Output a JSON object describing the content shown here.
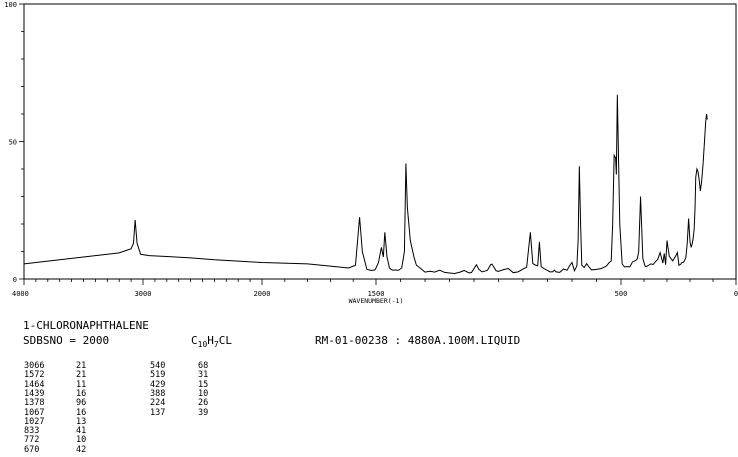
{
  "chart_data": {
    "type": "line",
    "xlabel": "WAVENUMBER(-1)",
    "ylabel": "",
    "xlim": [
      4000,
      0
    ],
    "ylim": [
      0,
      100
    ],
    "x_ticks": [
      "4000",
      "3000",
      "2000",
      "1500",
      "500",
      "0"
    ],
    "y_ticks": [
      "100",
      "50",
      "0"
    ],
    "grid": false,
    "series": [
      {
        "x": [
          4000,
          3800,
          3600,
          3400,
          3200,
          3100,
          3080,
          3066,
          3050,
          3020,
          2950,
          2800,
          2600,
          2400,
          2200,
          2000,
          1800,
          1700,
          1620,
          1590,
          1572,
          1560,
          1540,
          1520,
          1505,
          1500,
          1490,
          1478,
          1470,
          1464,
          1455,
          1445,
          1439,
          1432,
          1420,
          1410,
          1395,
          1384,
          1378,
          1372,
          1360,
          1345,
          1335,
          1320,
          1300,
          1280,
          1260,
          1240,
          1220,
          1200,
          1180,
          1160,
          1140,
          1120,
          1110,
          1100,
          1090,
          1080,
          1067,
          1058,
          1045,
          1032,
          1027,
          1020,
          1010,
          1000,
          980,
          960,
          940,
          920,
          900,
          885,
          870,
          860,
          850,
          840,
          833,
          826,
          815,
          800,
          790,
          780,
          772,
          765,
          750,
          735,
          720,
          710,
          700,
          690,
          680,
          675,
          670,
          665,
          660,
          650,
          640,
          630,
          620,
          600,
          580,
          560,
          548,
          540,
          534,
          528,
          522,
          519,
          515,
          505,
          495,
          485,
          472,
          462,
          455,
          450,
          440,
          435,
          429,
          423,
          415,
          405,
          395,
          388,
          380,
          370,
          360,
          350,
          340,
          330,
          318,
          312,
          306,
          300,
          290,
          275,
          262,
          255,
          248,
          240,
          235,
          230,
          224,
          218,
          212,
          206,
          200,
          195,
          190,
          186,
          182,
          178,
          175,
          170,
          165,
          160,
          155,
          150,
          143,
          137,
          132,
          128,
          125
        ],
        "values": [
          5.5,
          6.5,
          7.5,
          8.5,
          9.5,
          11,
          13,
          21.5,
          13,
          9,
          8.5,
          8.2,
          7.7,
          7,
          6.5,
          6,
          5.5,
          4.7,
          4,
          5,
          22.5,
          10,
          3.5,
          3.1,
          3.3,
          4,
          6,
          11.5,
          8,
          17,
          8,
          4,
          3.5,
          3.2,
          3.3,
          3.1,
          4,
          10,
          42,
          26,
          14,
          8,
          5,
          4,
          2.5,
          2.8,
          2.5,
          3.2,
          2.4,
          2.2,
          2,
          2.4,
          3.1,
          2.2,
          2.4,
          3.8,
          5.2,
          3.5,
          2.6,
          2.8,
          3.2,
          5.2,
          5.4,
          4.5,
          3,
          2.8,
          3.4,
          3.8,
          2.3,
          2.6,
          3.6,
          4.3,
          17,
          5.6,
          5.1,
          4.8,
          13.5,
          4.5,
          3.8,
          3.1,
          2.6,
          2.6,
          3.2,
          2.6,
          2.4,
          3.6,
          3.2,
          4.8,
          6,
          3,
          4.8,
          14,
          41,
          20,
          5,
          4.2,
          5.6,
          4.3,
          3.3,
          3.5,
          3.8,
          4.7,
          6,
          6.5,
          20,
          45,
          44,
          38,
          67,
          20,
          5.5,
          4.4,
          4.5,
          4.4,
          5.4,
          6.2,
          6.6,
          6.8,
          7.4,
          10,
          30,
          7.4,
          4.6,
          4.6,
          5,
          5.5,
          5.3,
          6.3,
          7.2,
          9.6,
          5.8,
          9.3,
          5.2,
          14,
          8.2,
          6.6,
          8.4,
          9.6,
          5,
          5.4,
          6,
          6,
          6.6,
          7.8,
          13,
          22,
          13.5,
          11.5,
          13,
          15,
          18,
          26,
          37,
          40,
          39,
          36,
          32,
          35,
          42,
          50,
          57,
          60,
          58
        ]
      }
    ]
  },
  "info": {
    "compound": "1-CHLORONAPHTHALENE",
    "sdbs": "SDBSNO = 2000",
    "formula_c": "C",
    "formula_c_sub": "10",
    "formula_h": "H",
    "formula_h_sub": "7",
    "formula_rest": "CL",
    "sample": "RM-01-00238 : 4880A.100M.LIQUID"
  },
  "peaks_left": [
    {
      "wn": "3066",
      "i": "21"
    },
    {
      "wn": "1572",
      "i": "21"
    },
    {
      "wn": "1464",
      "i": "11"
    },
    {
      "wn": "1439",
      "i": "16"
    },
    {
      "wn": "1378",
      "i": "96"
    },
    {
      "wn": "1067",
      "i": "16"
    },
    {
      "wn": "1027",
      "i": "13"
    },
    {
      "wn": "833",
      "i": "41"
    },
    {
      "wn": "772",
      "i": "10"
    },
    {
      "wn": "670",
      "i": "42"
    }
  ],
  "peaks_right": [
    {
      "wn": "540",
      "i": "68"
    },
    {
      "wn": "519",
      "i": "31"
    },
    {
      "wn": "429",
      "i": "15"
    },
    {
      "wn": "388",
      "i": "10"
    },
    {
      "wn": "224",
      "i": "26"
    },
    {
      "wn": "137",
      "i": "39"
    }
  ]
}
